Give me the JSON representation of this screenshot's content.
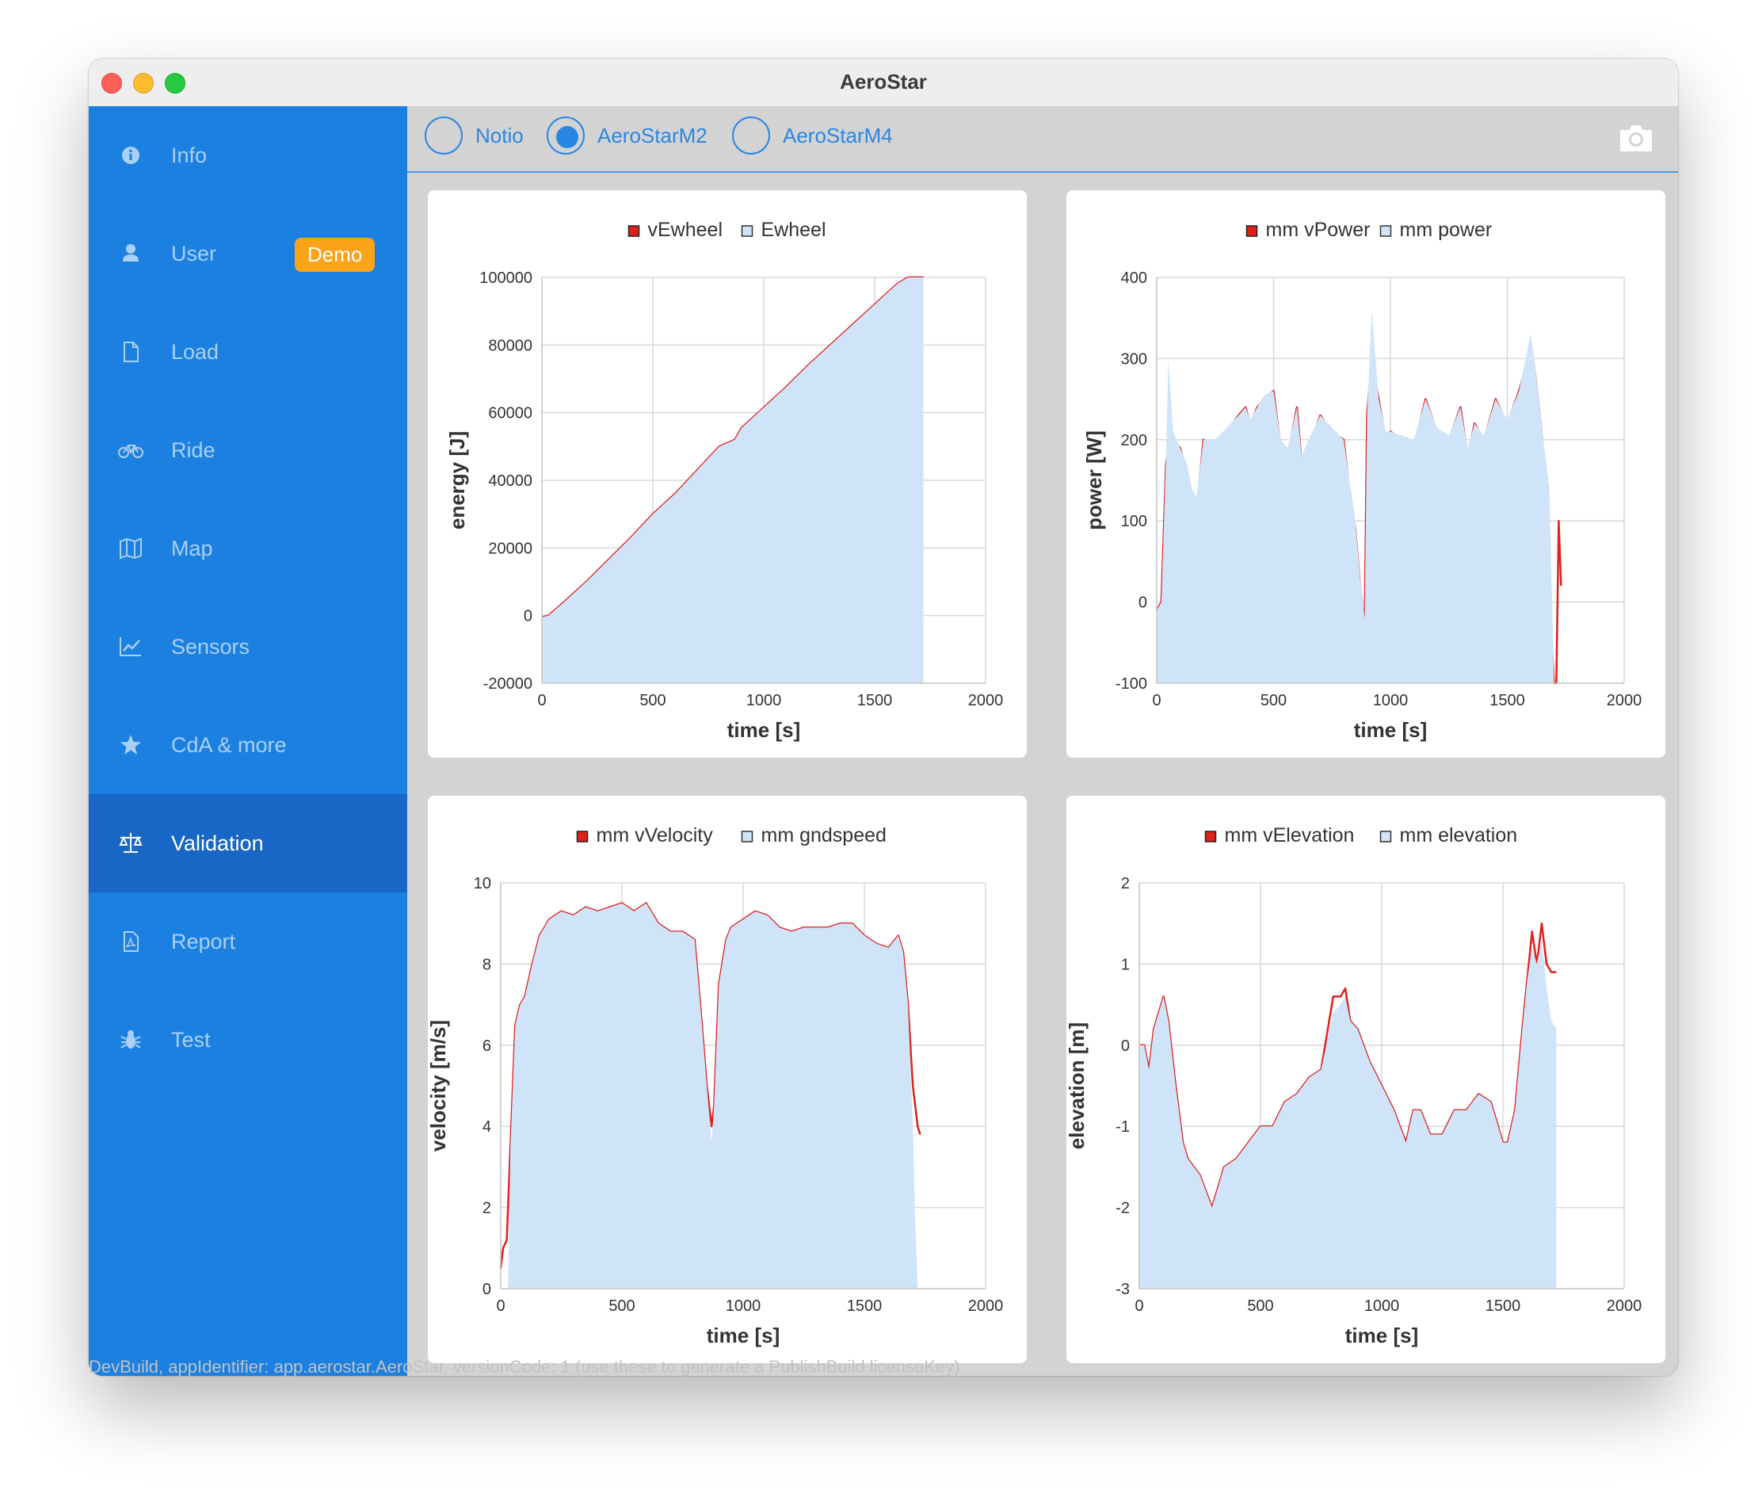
{
  "window": {
    "title": "AeroStar"
  },
  "sidebar": {
    "items": [
      {
        "label": "Info",
        "icon": "info-circle-icon",
        "active": false
      },
      {
        "label": "User",
        "icon": "user-icon",
        "active": false,
        "badge": "Demo"
      },
      {
        "label": "Load",
        "icon": "file-icon",
        "active": false
      },
      {
        "label": "Ride",
        "icon": "bicycle-icon",
        "active": false
      },
      {
        "label": "Map",
        "icon": "map-icon",
        "active": false
      },
      {
        "label": "Sensors",
        "icon": "line-chart-icon",
        "active": false
      },
      {
        "label": "CdA & more",
        "icon": "star-icon",
        "active": false
      },
      {
        "label": "Validation",
        "icon": "balance-scale-icon",
        "active": true
      },
      {
        "label": "Report",
        "icon": "pdf-file-icon",
        "active": false
      },
      {
        "label": "Test",
        "icon": "bug-icon",
        "active": false
      }
    ]
  },
  "toolbar": {
    "options": [
      {
        "label": "Notio",
        "selected": false
      },
      {
        "label": "AeroStarM2",
        "selected": true
      },
      {
        "label": "AeroStarM4",
        "selected": false
      }
    ],
    "camera_icon": "camera-icon"
  },
  "status_text": "DevBuild, appIdentifier: app.aerostar.AeroStar, versionCode: 1 (use these to generate a PublishBuild licenseKey)",
  "colors": {
    "accent": "#1c80e0",
    "active": "#1867c6",
    "badge": "#fba319",
    "line": "#e0201a",
    "fill": "#cfe4f9"
  },
  "chart_data": [
    {
      "type": "area",
      "legend": [
        "vEwheel",
        "Ewheel"
      ],
      "xlabel": "time [s]",
      "ylabel": "energy [J]",
      "xlim": [
        0,
        2000
      ],
      "ylim": [
        -20000,
        100000
      ],
      "xticks": [
        "0",
        "500",
        "1000",
        "1500",
        "2000"
      ],
      "yticks": [
        "-20000",
        "0",
        "20000",
        "40000",
        "60000",
        "80000",
        "100000"
      ],
      "series": [
        {
          "name": "vEwheel",
          "kind": "line",
          "x": [
            0,
            30,
            100,
            200,
            300,
            400,
            500,
            600,
            700,
            800,
            870,
            900,
            1000,
            1100,
            1200,
            1300,
            1400,
            1500,
            1600,
            1650,
            1680,
            1700,
            1720
          ],
          "y": [
            -500,
            0,
            4000,
            10000,
            16500,
            23000,
            30000,
            36000,
            43000,
            50000,
            52000,
            55500,
            61500,
            67500,
            74000,
            80000,
            86000,
            92000,
            98000,
            101500,
            102500,
            102000,
            102500
          ]
        },
        {
          "name": "Ewheel",
          "kind": "area",
          "x": [
            0,
            30,
            100,
            200,
            300,
            400,
            500,
            600,
            700,
            800,
            870,
            900,
            1000,
            1100,
            1200,
            1300,
            1400,
            1500,
            1600,
            1650,
            1680,
            1700,
            1720
          ],
          "y": [
            -500,
            0,
            4000,
            10000,
            16500,
            23000,
            30000,
            36000,
            43000,
            50000,
            52000,
            55500,
            61500,
            67500,
            74000,
            80000,
            86000,
            92000,
            98000,
            101500,
            102500,
            102000,
            102500
          ]
        }
      ]
    },
    {
      "type": "area",
      "legend": [
        "mm vPower",
        "mm power"
      ],
      "xlabel": "time [s]",
      "ylabel": "power [W]",
      "xlim": [
        0,
        2000
      ],
      "ylim": [
        -100,
        400
      ],
      "xticks": [
        "0",
        "500",
        "1000",
        "1500",
        "2000"
      ],
      "yticks": [
        "-100",
        "0",
        "100",
        "200",
        "300",
        "400"
      ],
      "series": [
        {
          "name": "mm vPower",
          "kind": "line",
          "x": [
            0,
            20,
            40,
            50,
            70,
            100,
            130,
            150,
            170,
            200,
            250,
            300,
            350,
            380,
            400,
            430,
            460,
            500,
            530,
            560,
            600,
            620,
            650,
            700,
            750,
            800,
            820,
            850,
            870,
            890,
            900,
            920,
            950,
            980,
            1000,
            1050,
            1100,
            1150,
            1200,
            1250,
            1300,
            1330,
            1360,
            1400,
            1450,
            1500,
            1550,
            1600,
            1620,
            1650,
            1680,
            1700,
            1710,
            1720,
            1730
          ],
          "y": [
            -10,
            0,
            170,
            190,
            200,
            190,
            160,
            130,
            110,
            200,
            190,
            210,
            230,
            240,
            220,
            240,
            250,
            260,
            190,
            180,
            240,
            170,
            190,
            230,
            210,
            200,
            150,
            90,
            20,
            -30,
            230,
            300,
            250,
            200,
            210,
            200,
            190,
            250,
            210,
            200,
            240,
            180,
            220,
            200,
            250,
            220,
            260,
            310,
            280,
            200,
            0,
            -160,
            -120,
            100,
            20
          ]
        },
        {
          "name": "mm power",
          "kind": "area",
          "x": [
            0,
            20,
            40,
            50,
            70,
            100,
            130,
            150,
            170,
            200,
            250,
            300,
            350,
            380,
            400,
            430,
            460,
            500,
            530,
            560,
            600,
            620,
            650,
            700,
            750,
            800,
            820,
            850,
            870,
            890,
            900,
            920,
            950,
            980,
            1000,
            1050,
            1100,
            1150,
            1200,
            1250,
            1300,
            1330,
            1360,
            1400,
            1450,
            1500,
            1550,
            1600,
            1620,
            1650,
            1680,
            1700,
            1710,
            1720
          ],
          "y": [
            -10,
            0,
            180,
            300,
            210,
            190,
            170,
            140,
            130,
            200,
            200,
            215,
            230,
            240,
            225,
            240,
            255,
            260,
            200,
            190,
            240,
            180,
            200,
            230,
            215,
            200,
            160,
            100,
            30,
            -20,
            230,
            360,
            250,
            210,
            210,
            205,
            200,
            250,
            215,
            205,
            240,
            190,
            220,
            205,
            250,
            225,
            260,
            330,
            290,
            210,
            140,
            -100,
            -100,
            -100
          ]
        }
      ]
    },
    {
      "type": "area",
      "legend": [
        "mm vVelocity",
        "mm gndspeed"
      ],
      "xlabel": "time [s]",
      "ylabel": "velocity [m/s]",
      "xlim": [
        0,
        2000
      ],
      "ylim": [
        0,
        10
      ],
      "xticks": [
        "0",
        "500",
        "1000",
        "1500",
        "2000"
      ],
      "yticks": [
        "0",
        "2",
        "4",
        "6",
        "8",
        "10"
      ],
      "series": [
        {
          "name": "mm vVelocity",
          "kind": "line",
          "x": [
            0,
            10,
            25,
            40,
            60,
            80,
            100,
            130,
            160,
            200,
            250,
            300,
            350,
            400,
            450,
            500,
            550,
            600,
            650,
            700,
            750,
            800,
            830,
            850,
            870,
            880,
            900,
            930,
            950,
            1000,
            1050,
            1100,
            1150,
            1200,
            1250,
            1300,
            1350,
            1400,
            1450,
            1500,
            1550,
            1600,
            1640,
            1660,
            1680,
            1700,
            1720,
            1730
          ],
          "y": [
            0.5,
            1,
            1.2,
            3.5,
            6.5,
            7,
            7.2,
            8,
            8.7,
            9.1,
            9.3,
            9.2,
            9.4,
            9.3,
            9.4,
            9.5,
            9.3,
            9.5,
            9.0,
            8.8,
            8.8,
            8.6,
            6.5,
            5,
            4,
            4.5,
            7.5,
            8.6,
            8.9,
            9.1,
            9.3,
            9.2,
            8.9,
            8.8,
            8.9,
            8.9,
            8.9,
            9.0,
            9.0,
            8.7,
            8.5,
            8.4,
            8.7,
            8.3,
            7.0,
            5.0,
            4.0,
            3.8
          ]
        },
        {
          "name": "mm gndspeed",
          "kind": "area",
          "x": [
            0,
            30,
            40,
            60,
            80,
            100,
            130,
            160,
            200,
            250,
            300,
            350,
            400,
            450,
            500,
            550,
            600,
            650,
            700,
            750,
            800,
            830,
            850,
            870,
            880,
            900,
            930,
            950,
            1000,
            1050,
            1100,
            1150,
            1200,
            1250,
            1300,
            1350,
            1400,
            1450,
            1500,
            1550,
            1600,
            1640,
            1660,
            1680,
            1700,
            1710,
            1720
          ],
          "y": [
            0,
            0,
            3.5,
            6.5,
            7,
            7.2,
            8,
            8.7,
            9.1,
            9.3,
            9.2,
            9.4,
            9.3,
            9.4,
            9.5,
            9.3,
            9.5,
            9.0,
            8.8,
            8.8,
            8.6,
            6.5,
            5,
            3.6,
            4.5,
            7.5,
            8.6,
            8.9,
            9.1,
            9.3,
            9.2,
            8.9,
            8.8,
            8.9,
            8.9,
            8.9,
            9.0,
            9.0,
            8.7,
            8.5,
            8.4,
            8.7,
            8.3,
            7.0,
            4.0,
            1.5,
            0
          ]
        }
      ]
    },
    {
      "type": "area",
      "legend": [
        "mm vElevation",
        "mm elevation"
      ],
      "xlabel": "time [s]",
      "ylabel": "elevation [m]",
      "xlim": [
        0,
        2000
      ],
      "ylim": [
        -3,
        2
      ],
      "xticks": [
        "0",
        "500",
        "1000",
        "1500",
        "2000"
      ],
      "yticks": [
        "-3",
        "-2",
        "-1",
        "0",
        "1",
        "2"
      ],
      "series": [
        {
          "name": "mm vElevation",
          "kind": "line",
          "x": [
            0,
            20,
            40,
            60,
            80,
            100,
            120,
            150,
            180,
            200,
            250,
            300,
            350,
            400,
            450,
            500,
            550,
            600,
            650,
            700,
            750,
            800,
            830,
            850,
            870,
            900,
            950,
            1000,
            1050,
            1100,
            1130,
            1160,
            1200,
            1250,
            1300,
            1350,
            1400,
            1450,
            1480,
            1500,
            1520,
            1550,
            1580,
            1600,
            1620,
            1640,
            1660,
            1680,
            1700,
            1720
          ],
          "y": [
            0,
            0,
            -0.3,
            0.2,
            0.4,
            0.6,
            0.3,
            -0.5,
            -1.2,
            -1.4,
            -1.6,
            -2.0,
            -1.5,
            -1.4,
            -1.2,
            -1.0,
            -1.0,
            -0.7,
            -0.6,
            -0.4,
            -0.3,
            0.6,
            0.6,
            0.7,
            0.3,
            0.2,
            -0.2,
            -0.5,
            -0.8,
            -1.2,
            -0.8,
            -0.8,
            -1.1,
            -1.1,
            -0.8,
            -0.8,
            -0.6,
            -0.7,
            -1.0,
            -1.2,
            -1.2,
            -0.8,
            0.2,
            0.8,
            1.4,
            1.0,
            1.5,
            1.0,
            0.9,
            0.9
          ]
        },
        {
          "name": "mm elevation",
          "kind": "area",
          "x": [
            0,
            20,
            40,
            60,
            80,
            100,
            120,
            150,
            180,
            200,
            250,
            300,
            350,
            400,
            450,
            500,
            550,
            600,
            650,
            700,
            750,
            800,
            830,
            850,
            870,
            900,
            950,
            1000,
            1050,
            1100,
            1130,
            1160,
            1200,
            1250,
            1300,
            1350,
            1400,
            1450,
            1480,
            1500,
            1520,
            1550,
            1580,
            1600,
            1620,
            1640,
            1660,
            1680,
            1700,
            1720
          ],
          "y": [
            0,
            0,
            -0.3,
            0.2,
            0.4,
            0.6,
            0.3,
            -0.5,
            -1.2,
            -1.4,
            -1.6,
            -2.0,
            -1.5,
            -1.4,
            -1.2,
            -1.0,
            -1.0,
            -0.7,
            -0.6,
            -0.4,
            -0.3,
            0.4,
            0.5,
            0.6,
            0.3,
            0.2,
            -0.2,
            -0.5,
            -0.8,
            -1.2,
            -0.8,
            -0.8,
            -1.1,
            -1.1,
            -0.8,
            -0.8,
            -0.6,
            -0.7,
            -1.0,
            -1.2,
            -1.2,
            -0.8,
            0.2,
            0.8,
            1.2,
            1.0,
            1.3,
            0.7,
            0.3,
            0.2
          ]
        }
      ]
    }
  ]
}
